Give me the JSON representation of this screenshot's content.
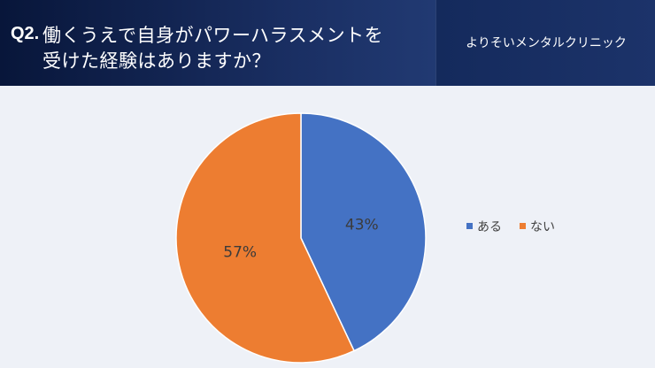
{
  "header": {
    "question_number": "Q2.",
    "question_line1": "働くうえで自身がパワーハラスメントを",
    "question_line2": "受けた経験はありますか？",
    "clinic_name": "よりそいメンタルクリニック"
  },
  "chart_data": {
    "type": "pie",
    "categories": [
      "ある",
      "ない"
    ],
    "values": [
      43,
      57
    ],
    "labels": [
      "43%",
      "57%"
    ],
    "colors": [
      "#4472c4",
      "#ed7d31"
    ],
    "legend_position": "right",
    "start_angle": "12 o'clock",
    "direction": "clockwise"
  }
}
